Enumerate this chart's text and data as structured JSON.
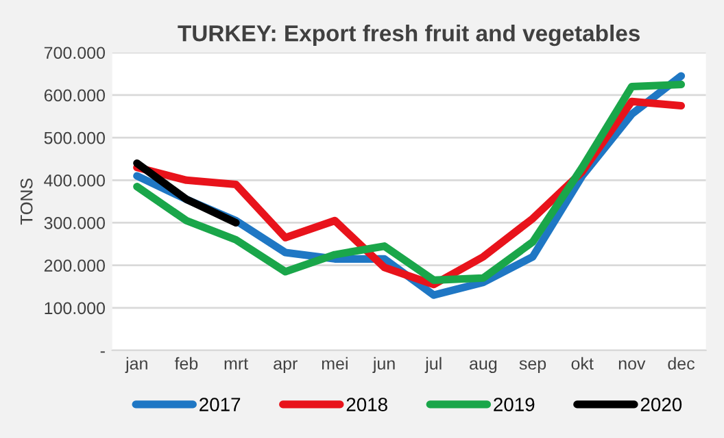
{
  "chart_data": {
    "type": "line",
    "title": "TURKEY: Export fresh fruit and vegetables",
    "ylabel": "TONS",
    "categories": [
      "jan",
      "feb",
      "mrt",
      "apr",
      "mei",
      "jun",
      "jul",
      "aug",
      "sep",
      "okt",
      "nov",
      "dec"
    ],
    "series": [
      {
        "name": "2017",
        "color": "#1f77c4",
        "values": [
          410000,
          355000,
          305000,
          230000,
          215000,
          215000,
          130000,
          160000,
          220000,
          410000,
          555000,
          645000
        ]
      },
      {
        "name": "2018",
        "color": "#e8131b",
        "values": [
          430000,
          400000,
          390000,
          265000,
          305000,
          195000,
          155000,
          220000,
          310000,
          420000,
          585000,
          575000
        ]
      },
      {
        "name": "2019",
        "color": "#1aa64a",
        "values": [
          385000,
          305000,
          260000,
          185000,
          225000,
          245000,
          165000,
          170000,
          255000,
          430000,
          620000,
          625000
        ]
      },
      {
        "name": "2020",
        "color": "#000000",
        "values": [
          440000,
          355000,
          300000,
          null,
          null,
          null,
          null,
          null,
          null,
          null,
          null,
          null
        ]
      }
    ],
    "ylim": [
      0,
      700000
    ],
    "yticks": [
      {
        "value": 0,
        "label": "-"
      },
      {
        "value": 100000,
        "label": "100.000"
      },
      {
        "value": 200000,
        "label": "200.000"
      },
      {
        "value": 300000,
        "label": "300.000"
      },
      {
        "value": 400000,
        "label": "400.000"
      },
      {
        "value": 500000,
        "label": "500.000"
      },
      {
        "value": 600000,
        "label": "600.000"
      },
      {
        "value": 700000,
        "label": "700.000"
      }
    ],
    "grid": "y",
    "legend": "bottom",
    "line_style": "solid",
    "marker": "none"
  }
}
